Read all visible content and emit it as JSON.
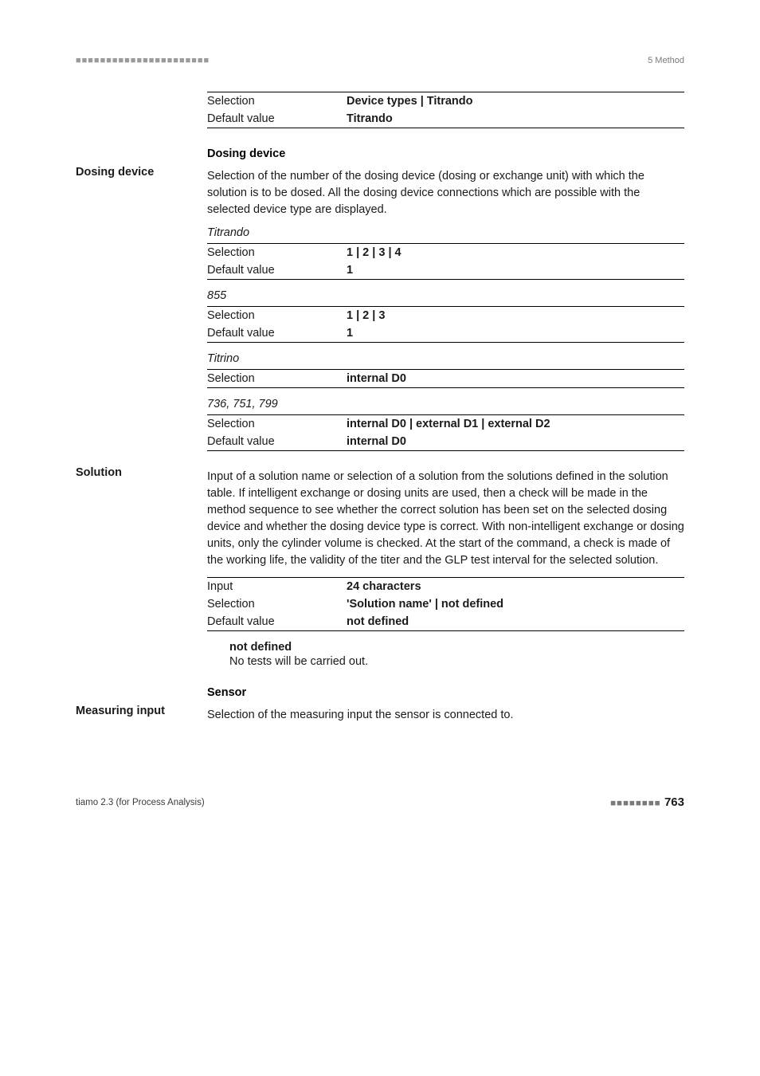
{
  "header": {
    "dots": "■■■■■■■■■■■■■■■■■■■■■■",
    "right": "5 Method"
  },
  "intro_table": {
    "rows": [
      {
        "k": "Selection",
        "v": "Device types | Titrando"
      },
      {
        "k": "Default value",
        "v": "Titrando"
      }
    ]
  },
  "dosing_device": {
    "head": "Dosing device",
    "label": "Dosing device",
    "para": "Selection of the number of the dosing device (dosing or exchange unit) with which the solution is to be dosed. All the dosing device connections which are possible with the selected device type are displayed.",
    "variants": [
      {
        "name": "Titrando",
        "rows": [
          {
            "k": "Selection",
            "v": "1 | 2 | 3 | 4"
          },
          {
            "k": "Default value",
            "v": "1"
          }
        ]
      },
      {
        "name": "855",
        "rows": [
          {
            "k": "Selection",
            "v": "1 | 2 | 3"
          },
          {
            "k": "Default value",
            "v": "1"
          }
        ]
      },
      {
        "name": "Titrino",
        "rows": [
          {
            "k": "Selection",
            "v": "internal D0"
          }
        ]
      },
      {
        "name": "736, 751, 799",
        "rows": [
          {
            "k": "Selection",
            "v": "internal D0 | external D1 | external D2"
          },
          {
            "k": "Default value",
            "v": "internal D0"
          }
        ]
      }
    ]
  },
  "solution": {
    "label": "Solution",
    "para": "Input of a solution name or selection of a solution from the solutions defined in the solution table. If intelligent exchange or dosing units are used, then a check will be made in the method sequence to see whether the correct solution has been set on the selected dosing device and whether the dosing device type is correct. With non-intelligent exchange or dosing units, only the cylinder volume is checked. At the start of the command, a check is made of the working life, the validity of the titer and the GLP test interval for the selected solution.",
    "rows": [
      {
        "k": "Input",
        "v": "24 characters"
      },
      {
        "k": "Selection",
        "v": "'Solution name' | not defined"
      },
      {
        "k": "Default value",
        "v": "not defined"
      }
    ],
    "note_title": "not defined",
    "note_body": "No tests will be carried out."
  },
  "sensor": {
    "head": "Sensor",
    "label": "Measuring input",
    "para": "Selection of the measuring input the sensor is connected to."
  },
  "footer": {
    "left": "tiamo 2.3 (for Process Analysis)",
    "dots": "■■■■■■■■",
    "page": "763"
  }
}
